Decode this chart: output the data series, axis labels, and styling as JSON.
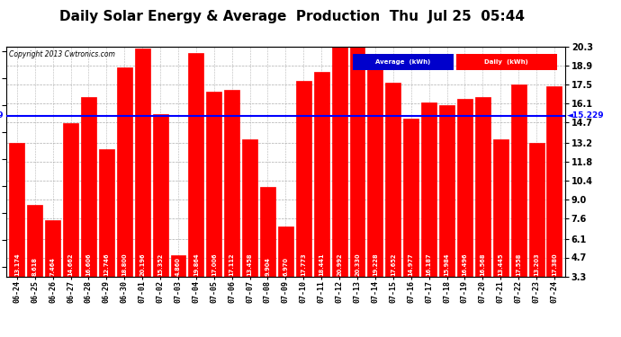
{
  "title": "Daily Solar Energy & Average  Production  Thu  Jul 25  05:44",
  "copyright": "Copyright 2013 Cwtronics.com",
  "categories": [
    "06-24",
    "06-25",
    "06-26",
    "06-27",
    "06-28",
    "06-29",
    "06-30",
    "07-01",
    "07-02",
    "07-03",
    "07-04",
    "07-05",
    "07-06",
    "07-07",
    "07-08",
    "07-09",
    "07-10",
    "07-11",
    "07-12",
    "07-13",
    "07-14",
    "07-15",
    "07-16",
    "07-17",
    "07-18",
    "07-19",
    "07-20",
    "07-21",
    "07-22",
    "07-23",
    "07-24"
  ],
  "values": [
    13.174,
    8.618,
    7.464,
    14.662,
    16.606,
    12.746,
    18.8,
    20.196,
    15.352,
    4.86,
    19.864,
    17.006,
    17.112,
    13.458,
    9.904,
    6.97,
    17.773,
    18.441,
    20.992,
    20.33,
    19.228,
    17.652,
    14.977,
    16.187,
    15.984,
    16.496,
    16.568,
    13.445,
    17.558,
    13.203,
    17.38
  ],
  "average": 15.229,
  "bar_color": "#FF0000",
  "avg_line_color": "#0000FF",
  "background_color": "#FFFFFF",
  "plot_bg_color": "#FFFFFF",
  "title_fontsize": 11,
  "ylabel_right": [
    "3.3",
    "4.7",
    "6.1",
    "7.6",
    "9.0",
    "10.4",
    "11.8",
    "13.2",
    "14.7",
    "16.1",
    "17.5",
    "18.9",
    "20.3"
  ],
  "yticks_right": [
    3.3,
    4.7,
    6.1,
    7.6,
    9.0,
    10.4,
    11.8,
    13.2,
    14.7,
    16.1,
    17.5,
    18.9,
    20.3
  ],
  "ymin": 3.3,
  "ymax": 20.3,
  "grid_color": "#999999",
  "legend_avg_color": "#0000CC",
  "legend_daily_color": "#FF0000",
  "avg_label": "Average  (kWh)",
  "daily_label": "Daily  (kWh)"
}
